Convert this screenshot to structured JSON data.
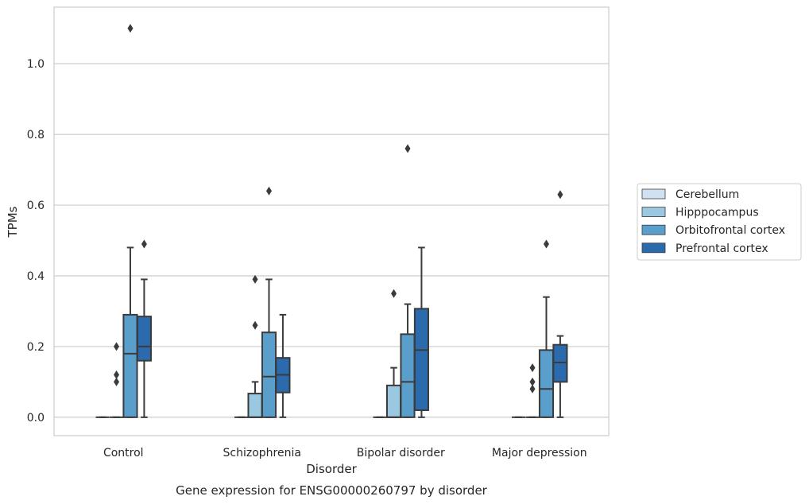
{
  "chart_data": {
    "type": "box",
    "xlabel": "Disorder",
    "ylabel": "TPMs",
    "caption": "Gene expression for ENSG00000260797 by disorder",
    "ylim": [
      -0.052,
      1.16
    ],
    "yticks": [
      "0.0",
      "0.2",
      "0.4",
      "0.6",
      "0.8",
      "1.0"
    ],
    "grid": "horizontal",
    "legend_position": "right",
    "categories": [
      "Control",
      "Schizophrenia",
      "Bipolar disorder",
      "Major depression"
    ],
    "series": [
      {
        "name": "Cerebellum",
        "color": "#d0e2f2",
        "boxes": [
          {
            "whisker_low": 0,
            "q1": 0,
            "median": 0,
            "q3": 0,
            "whisker_high": 0,
            "outliers": []
          },
          {
            "whisker_low": 0,
            "q1": 0,
            "median": 0,
            "q3": 0,
            "whisker_high": 0,
            "outliers": []
          },
          {
            "whisker_low": 0,
            "q1": 0,
            "median": 0,
            "q3": 0,
            "whisker_high": 0,
            "outliers": []
          },
          {
            "whisker_low": 0,
            "q1": 0,
            "median": 0,
            "q3": 0,
            "whisker_high": 0,
            "outliers": []
          }
        ]
      },
      {
        "name": "Hipppocampus",
        "color": "#9ac8e0",
        "boxes": [
          {
            "whisker_low": 0,
            "q1": 0,
            "median": 0,
            "q3": 0,
            "whisker_high": 0,
            "outliers": [
              0.1,
              0.12,
              0.2
            ]
          },
          {
            "whisker_low": 0,
            "q1": 0,
            "median": 0,
            "q3": 0.067,
            "whisker_high": 0.1,
            "outliers": [
              0.26,
              0.39
            ]
          },
          {
            "whisker_low": 0,
            "q1": 0,
            "median": 0,
            "q3": 0.09,
            "whisker_high": 0.14,
            "outliers": [
              0.35
            ]
          },
          {
            "whisker_low": 0,
            "q1": 0,
            "median": 0,
            "q3": 0,
            "whisker_high": 0,
            "outliers": [
              0.08,
              0.1,
              0.14
            ]
          }
        ]
      },
      {
        "name": "Orbitofrontal cortex",
        "color": "#5a9fcc",
        "boxes": [
          {
            "whisker_low": 0,
            "q1": 0,
            "median": 0.18,
            "q3": 0.29,
            "whisker_high": 0.48,
            "outliers": [
              1.1
            ]
          },
          {
            "whisker_low": 0,
            "q1": 0,
            "median": 0.115,
            "q3": 0.24,
            "whisker_high": 0.39,
            "outliers": [
              0.64
            ]
          },
          {
            "whisker_low": 0,
            "q1": 0,
            "median": 0.1,
            "q3": 0.235,
            "whisker_high": 0.32,
            "outliers": [
              0.76
            ]
          },
          {
            "whisker_low": 0,
            "q1": 0,
            "median": 0.08,
            "q3": 0.19,
            "whisker_high": 0.34,
            "outliers": [
              0.49
            ]
          }
        ]
      },
      {
        "name": "Prefrontal cortex",
        "color": "#2a6aad",
        "boxes": [
          {
            "whisker_low": 0,
            "q1": 0.16,
            "median": 0.2,
            "q3": 0.285,
            "whisker_high": 0.39,
            "outliers": [
              0.49
            ]
          },
          {
            "whisker_low": 0,
            "q1": 0.07,
            "median": 0.12,
            "q3": 0.168,
            "whisker_high": 0.29,
            "outliers": []
          },
          {
            "whisker_low": 0,
            "q1": 0.02,
            "median": 0.19,
            "q3": 0.307,
            "whisker_high": 0.48,
            "outliers": []
          },
          {
            "whisker_low": 0,
            "q1": 0.1,
            "median": 0.155,
            "q3": 0.205,
            "whisker_high": 0.23,
            "outliers": [
              0.63
            ]
          }
        ]
      }
    ],
    "colors": {
      "grid": "#cccccc",
      "frame": "#cccccc",
      "edge": "#3b3b3b"
    }
  }
}
